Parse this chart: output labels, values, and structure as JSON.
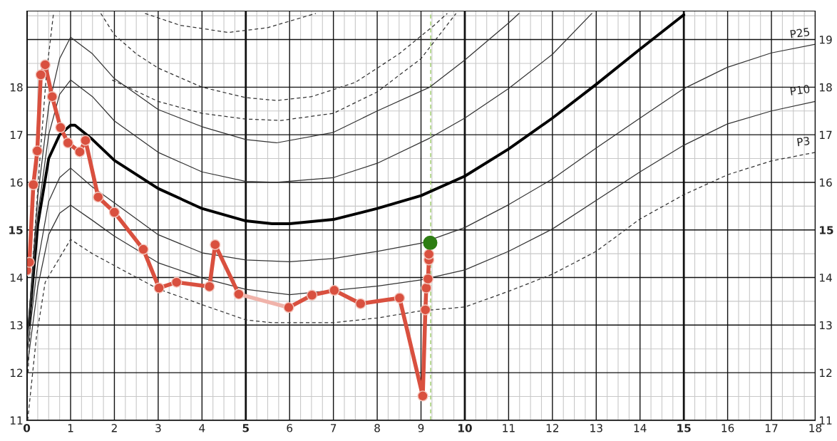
{
  "chart_data": {
    "type": "line",
    "xlim": [
      0,
      18
    ],
    "xticks": [
      0,
      1,
      2,
      3,
      4,
      5,
      6,
      7,
      8,
      9,
      10,
      11,
      12,
      13,
      14,
      15,
      16,
      17,
      18
    ],
    "ylim": [
      11,
      19.6
    ],
    "yticks": [
      11,
      12,
      13,
      14,
      15,
      16,
      17,
      18
    ],
    "y2lim": [
      11,
      19.6
    ],
    "y2ticks": [
      11,
      12,
      13,
      14,
      15,
      16,
      17,
      18,
      19
    ],
    "grid": true,
    "series": [
      {
        "color": "#333333",
        "line_style": "dashed",
        "marker": "none",
        "x": [
          0.02,
          0.22,
          0.42,
          0.61,
          1.0,
          1.5,
          2,
          3,
          4,
          5,
          5.6,
          7,
          8,
          9,
          10,
          11,
          12,
          13,
          14,
          15,
          16,
          17,
          18
        ],
        "values": [
          11.0,
          12.75,
          13.9,
          14.2,
          14.8,
          14.5,
          14.25,
          13.76,
          13.43,
          13.11,
          13.05,
          13.05,
          13.15,
          13.3,
          13.38,
          13.71,
          14.07,
          14.55,
          15.23,
          15.74,
          16.16,
          16.45,
          16.63
        ],
        "name": "P3"
      },
      {
        "color": "#333333",
        "line_style": "solid",
        "marker": "none",
        "x": [
          0.02,
          0.25,
          0.5,
          0.75,
          1,
          1.5,
          2,
          3,
          4,
          5,
          6,
          8,
          9,
          10,
          11,
          12,
          13,
          14,
          15,
          16,
          17,
          18
        ],
        "values": [
          12.2,
          13.8,
          14.9,
          15.35,
          15.52,
          15.2,
          14.87,
          14.31,
          13.99,
          13.75,
          13.64,
          13.82,
          13.95,
          14.16,
          14.55,
          15.02,
          15.62,
          16.22,
          16.78,
          17.23,
          17.5,
          17.7
        ],
        "name": "P10"
      },
      {
        "color": "#333333",
        "line_style": "solid",
        "marker": "none",
        "x": [
          0.02,
          0.25,
          0.5,
          0.75,
          1,
          1.5,
          2,
          3,
          4,
          5,
          6,
          7,
          8,
          9,
          10,
          11,
          12,
          13,
          14,
          15,
          16,
          17,
          18
        ],
        "values": [
          12.5,
          14.3,
          15.6,
          16.1,
          16.3,
          15.9,
          15.57,
          14.9,
          14.52,
          14.37,
          14.33,
          14.4,
          14.55,
          14.72,
          15.05,
          15.53,
          16.07,
          16.72,
          17.35,
          17.97,
          18.42,
          18.72,
          18.9
        ],
        "name": "P25"
      },
      {
        "color": "#000000",
        "line_style": "solid",
        "marker": "none",
        "x": [
          0.05,
          0.25,
          0.5,
          0.75,
          1,
          1.1,
          1.5,
          2,
          3,
          4,
          5,
          5.6,
          6,
          7,
          8,
          9,
          10,
          11,
          12,
          13,
          14,
          15
        ],
        "values": [
          13.0,
          15.1,
          16.5,
          17.0,
          17.2,
          17.2,
          16.9,
          16.46,
          15.87,
          15.45,
          15.19,
          15.13,
          15.13,
          15.22,
          15.45,
          15.72,
          16.13,
          16.7,
          17.35,
          18.06,
          18.8,
          19.52
        ]
      },
      {
        "color": "#333333",
        "line_style": "solid",
        "marker": "none",
        "x": [
          0.02,
          0.25,
          0.5,
          0.75,
          1,
          1.5,
          2,
          3,
          4,
          5,
          5.7,
          7,
          8,
          9.2,
          10,
          11,
          12,
          12.9
        ],
        "values": [
          12.7,
          15.3,
          17.0,
          17.85,
          18.15,
          17.8,
          17.29,
          16.63,
          16.22,
          16.02,
          16.0,
          16.1,
          16.4,
          16.93,
          17.35,
          17.97,
          18.69,
          19.55
        ]
      },
      {
        "color": "#333333",
        "line_style": "solid",
        "marker": "none",
        "x": [
          0.02,
          0.25,
          0.5,
          0.75,
          1,
          1.5,
          2,
          3,
          4,
          5,
          5.7,
          7,
          8,
          9.2,
          10,
          11,
          11.24
        ],
        "values": [
          12.8,
          15.7,
          17.6,
          18.6,
          19.05,
          18.7,
          18.18,
          17.53,
          17.17,
          16.9,
          16.83,
          17.05,
          17.5,
          18.0,
          18.57,
          19.35,
          19.55
        ]
      },
      {
        "color": "#333333",
        "line_style": "dashed",
        "marker": "none",
        "x": [
          1.95,
          3,
          4,
          5,
          5.8,
          7,
          8,
          9,
          9.8
        ],
        "values": [
          18.15,
          17.7,
          17.45,
          17.33,
          17.3,
          17.45,
          17.9,
          18.6,
          19.55
        ]
      },
      {
        "color": "#333333",
        "line_style": "dashed",
        "marker": "none",
        "x": [
          1.69,
          2,
          2.5,
          3,
          4,
          5,
          5.7,
          6.5,
          7.5,
          8.5,
          9.3,
          9.6
        ],
        "values": [
          19.55,
          19.1,
          18.7,
          18.4,
          18.0,
          17.78,
          17.72,
          17.8,
          18.1,
          18.7,
          19.3,
          19.55
        ]
      },
      {
        "color": "#333333",
        "line_style": "dashed",
        "marker": "none",
        "x": [
          2.7,
          3.5,
          4.6,
          5.5,
          6.6
        ],
        "values": [
          19.55,
          19.3,
          19.15,
          19.25,
          19.55
        ]
      },
      {
        "color": "#333333",
        "line_style": "dashed",
        "marker": "none",
        "x": [
          0.03,
          0.15,
          0.3,
          0.45,
          0.61
        ],
        "values": [
          12.0,
          14.5,
          16.5,
          18.3,
          19.55
        ]
      },
      {
        "color": "#d9503f",
        "line_style": "solid",
        "marker": "circle",
        "x": [
          0,
          0.06,
          0.15,
          0.24,
          0.32,
          0.42,
          0.58,
          0.77,
          0.94,
          1.21,
          1.34,
          1.63,
          2.0,
          2.66,
          3.02,
          3.42,
          4.17,
          4.3,
          4.84
        ],
        "values": [
          14.15,
          14.32,
          15.95,
          16.66,
          18.26,
          18.47,
          17.8,
          17.15,
          16.83,
          16.64,
          16.88,
          15.69,
          15.37,
          14.59,
          13.78,
          13.9,
          13.81,
          14.69,
          13.65
        ]
      },
      {
        "color": "#f0b3aa",
        "line_style": "solid",
        "marker": "none",
        "x": [
          4.84,
          5.98
        ],
        "values": [
          13.65,
          13.37
        ]
      },
      {
        "color": "#d9503f",
        "line_style": "solid",
        "marker": "circle",
        "x": [
          5.98,
          6.51,
          7.02,
          7.62,
          8.51,
          9.04,
          9.1,
          9.12,
          9.16,
          9.18,
          9.18
        ],
        "values": [
          13.37,
          13.63,
          13.73,
          13.45,
          13.57,
          11.51,
          13.32,
          13.78,
          13.97,
          14.37,
          14.49
        ]
      },
      {
        "color": "#2e7d13",
        "type": "scatter",
        "marker": "circle",
        "x": [
          9.21
        ],
        "values": [
          14.73
        ]
      }
    ],
    "ref_lines": [
      {
        "axis": "x",
        "value": 9.22,
        "color": "#9ccc65",
        "line_style": "dashed"
      }
    ]
  }
}
